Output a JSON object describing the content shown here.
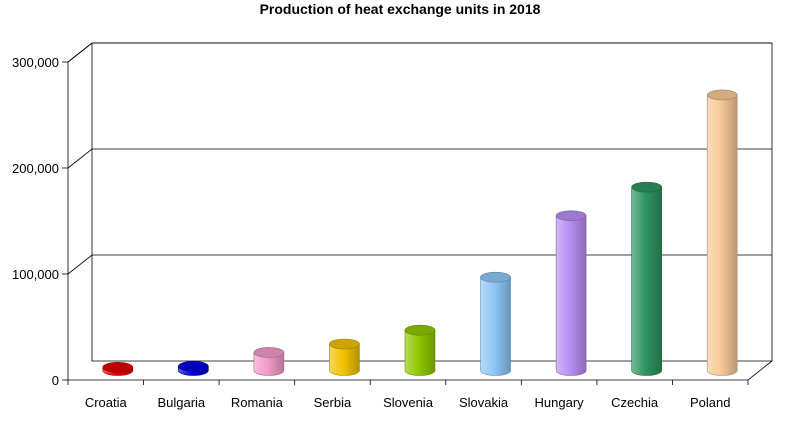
{
  "chart_data": {
    "type": "bar",
    "title": "Production of heat exchange units in 2018",
    "xlabel": "",
    "ylabel": "",
    "categories": [
      "Croatia",
      "Bulgaria",
      "Romania",
      "Serbia",
      "Slovenia",
      "Slovakia",
      "Hungary",
      "Czechia",
      "Poland"
    ],
    "values": [
      3000,
      4000,
      17000,
      25000,
      38000,
      88000,
      146000,
      173000,
      260000
    ],
    "ylim": [
      0,
      300000
    ],
    "yticks": [
      0,
      100000,
      200000,
      300000
    ],
    "ytick_labels": [
      "0",
      "100,000",
      "200,000",
      "300,000"
    ],
    "grid": true,
    "legend": "none",
    "colors": [
      "#e00000",
      "#0000e0",
      "#f29ac8",
      "#f2c200",
      "#8fc800",
      "#8ec6f6",
      "#b98ef2",
      "#2e9460",
      "#f7c998"
    ]
  }
}
